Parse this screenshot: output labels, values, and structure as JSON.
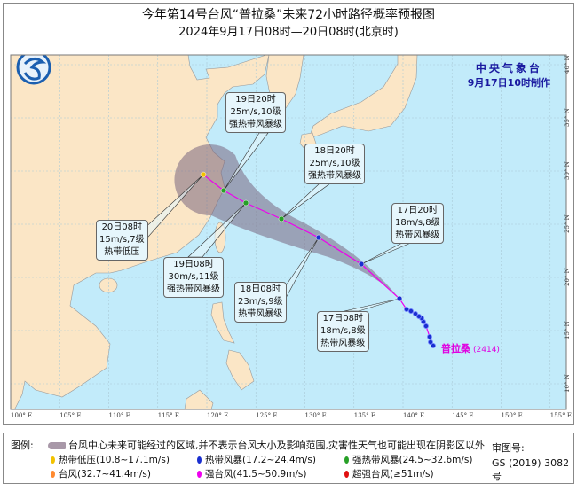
{
  "title": "今年第14号台风“普拉桑”未来72小时路径概率预报图",
  "subtitle": "2024年9月17日08时—20日08时(北京时)",
  "agency": {
    "name": "中央气象台",
    "issued": "9月17日10时制作"
  },
  "typhoon": {
    "name": "普拉桑",
    "id": "(2414)"
  },
  "axes": {
    "lon_labels": [
      "100° E",
      "105° E",
      "110° E",
      "115° E",
      "120° E",
      "125° E",
      "130° E",
      "135° E",
      "140° E",
      "145° E",
      "150° E",
      "155° E"
    ],
    "lat_labels": [
      "40° N",
      "35° N",
      "30° N",
      "25° N",
      "20° N",
      "15° N",
      "10° N"
    ],
    "inner_lat_labels": [
      "40",
      "30",
      "25",
      "20",
      "15",
      "10"
    ]
  },
  "forecasts": [
    {
      "time": "17日08时",
      "wind": "18m/s,8级",
      "category": "热带风暴级",
      "color": "#1a2fd0"
    },
    {
      "time": "17日20时",
      "wind": "18m/s,8级",
      "category": "热带风暴级",
      "color": "#1a2fd0"
    },
    {
      "time": "18日08时",
      "wind": "23m/s,9级",
      "category": "热带风暴级",
      "color": "#1a2fd0"
    },
    {
      "time": "18日20时",
      "wind": "25m/s,10级",
      "category": "强热带风暴级",
      "color": "#27a027"
    },
    {
      "time": "19日08时",
      "wind": "30m/s,11级",
      "category": "强热带风暴级",
      "color": "#27a027"
    },
    {
      "time": "19日20时",
      "wind": "25m/s,10级",
      "category": "强热带风暴级",
      "color": "#27a027"
    },
    {
      "time": "20日08时",
      "wind": "15m/s,7级",
      "category": "热带低压",
      "color": "#f2c200"
    }
  ],
  "colors": {
    "land": "#fbe6c6",
    "sea": "#c2ebfa",
    "track": "#ee00ee",
    "cone": "#7a6680"
  },
  "legend": {
    "label": "图例:",
    "cone_text": "台风中心未来可能经过的区域,并不表示台风大小及影响范围,灾害性天气也可能出现在阴影区以外",
    "items": [
      {
        "text": "热带低压(10.8~17.1m/s)",
        "color": "#f2c200"
      },
      {
        "text": "热带风暴(17.2~24.4m/s)",
        "color": "#1a2fd0"
      },
      {
        "text": "强热带风暴(24.5~32.6m/s)",
        "color": "#27a027"
      },
      {
        "text": "台风(32.7~41.4m/s)",
        "color": "#ff8a30"
      },
      {
        "text": "强台风(41.5~50.9m/s)",
        "color": "#ee00ee"
      },
      {
        "text": "超强台风(≥51m/s)",
        "color": "#e01010"
      }
    ],
    "approval_label": "审图号:",
    "approval_number": "GS (2019) 3082号"
  }
}
